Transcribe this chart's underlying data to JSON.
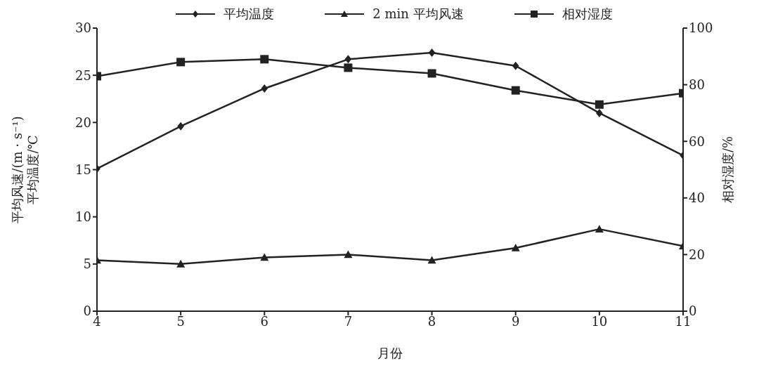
{
  "chart_data": {
    "type": "line",
    "x": [
      4,
      5,
      6,
      7,
      8,
      9,
      10,
      11
    ],
    "xlim": [
      4,
      11
    ],
    "xticks": [
      4,
      5,
      6,
      7,
      8,
      9,
      10,
      11
    ],
    "ylim": [
      0,
      30
    ],
    "yticks": [
      0,
      5,
      10,
      15,
      20,
      25,
      30
    ],
    "y2lim": [
      0,
      100
    ],
    "y2ticks": [
      0,
      20,
      40,
      60,
      80,
      100
    ],
    "xlabel": "月份",
    "ylabel": "平均风速/(m · s⁻¹)\n平均温度/℃",
    "y2label": "相对湿度/%",
    "grid": false,
    "legend": "top",
    "line_style": "solid",
    "series": [
      {
        "name": "平均温度",
        "color": "#222222",
        "marker": "diamond",
        "values": [
          15.1,
          19.6,
          23.6,
          26.7,
          27.4,
          26.0,
          21.0,
          16.5
        ]
      },
      {
        "name": "2 min 平均风速",
        "color": "#222222",
        "marker": "triangle",
        "values": [
          5.4,
          5.0,
          5.7,
          6.0,
          5.4,
          6.7,
          8.7,
          6.9
        ]
      },
      {
        "name": "相对湿度",
        "color": "#222222",
        "marker": "square",
        "axis": "y2",
        "values": [
          83,
          88,
          89,
          86,
          84,
          78,
          73,
          77
        ]
      }
    ]
  }
}
